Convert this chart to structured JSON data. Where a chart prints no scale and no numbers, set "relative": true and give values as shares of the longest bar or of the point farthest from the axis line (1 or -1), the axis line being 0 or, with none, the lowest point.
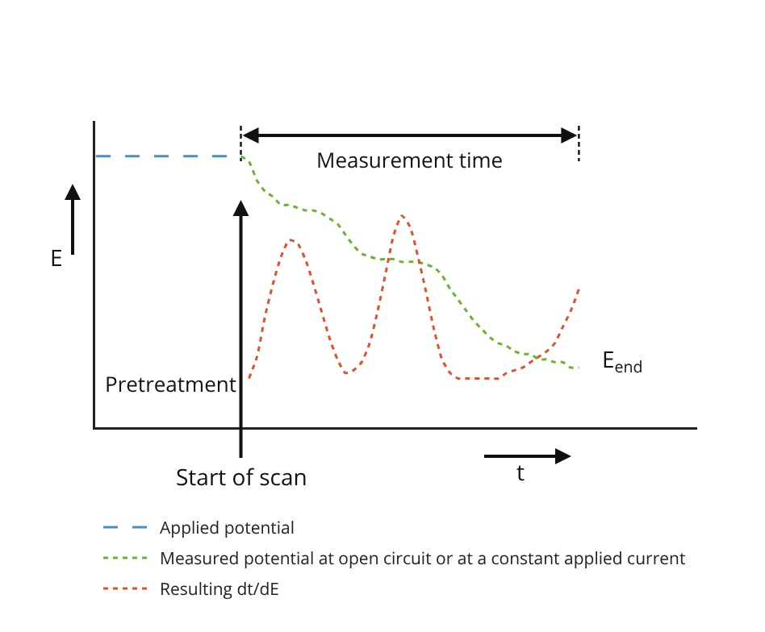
{
  "chart_data": {
    "type": "line",
    "relative": true,
    "xlabel": "t",
    "ylabel": "E",
    "legend": "bottom",
    "marker": "none",
    "annotations": [
      "Measurement time",
      "Pretreatment",
      "Start of scan",
      "E$_{end}$"
    ],
    "categories": [
      null,
      null,
      null,
      null,
      null,
      null,
      null,
      null,
      null,
      null,
      null,
      null,
      null,
      null,
      null,
      null,
      null,
      null,
      null,
      null,
      null,
      null,
      null,
      null,
      null,
      null,
      null,
      null,
      null,
      null,
      null,
      null,
      null,
      null,
      null,
      null,
      null,
      null,
      null,
      null,
      null,
      null,
      null,
      null,
      null,
      null,
      null,
      null,
      null,
      null,
      null,
      null,
      null,
      null,
      null,
      null,
      null,
      null,
      null,
      null,
      null
    ],
    "series": [
      {
        "name": "Applied potential",
        "color": "#4a8fc9",
        "line_style": "dashed",
        "values": [
          1,
          1,
          1,
          1,
          1,
          1,
          1,
          1,
          1,
          1,
          1,
          1,
          1,
          1,
          1,
          1,
          1,
          1,
          1,
          null,
          null,
          null,
          null,
          null,
          null,
          null,
          null,
          null,
          null,
          null,
          null,
          null,
          null,
          null,
          null,
          null,
          null,
          null,
          null,
          null,
          null,
          null,
          null,
          null,
          null,
          null,
          null,
          null,
          null,
          null,
          null,
          null,
          null,
          null,
          null,
          null,
          null,
          null,
          null,
          null,
          null
        ]
      },
      {
        "name": "Measured potential at open circuit or at a constant applied current",
        "color": "#6ab42d",
        "line_style": "dotted",
        "values": [
          null,
          null,
          null,
          null,
          null,
          null,
          null,
          null,
          null,
          null,
          null,
          null,
          null,
          null,
          null,
          null,
          null,
          null,
          1.0,
          0.98,
          0.91,
          0.87,
          0.85,
          0.82,
          0.82,
          0.81,
          0.8,
          0.8,
          0.79,
          0.77,
          0.75,
          0.71,
          0.67,
          0.64,
          0.63,
          0.62,
          0.62,
          0.62,
          0.61,
          0.61,
          0.61,
          0.6,
          0.59,
          0.56,
          0.51,
          0.47,
          0.43,
          0.39,
          0.36,
          0.33,
          0.31,
          0.3,
          0.28,
          0.27,
          0.27,
          0.25,
          0.25,
          0.24,
          0.24,
          0.22,
          0.22
        ]
      },
      {
        "name": "Resulting dt/dE",
        "color": "#e0502a",
        "line_style": "dotted",
        "values": [
          null,
          null,
          null,
          null,
          null,
          null,
          null,
          null,
          null,
          null,
          null,
          null,
          null,
          null,
          null,
          null,
          null,
          null,
          null,
          0.18,
          0.26,
          0.41,
          0.53,
          0.63,
          0.69,
          0.68,
          0.62,
          0.53,
          0.43,
          0.33,
          0.25,
          0.2,
          0.21,
          0.24,
          0.31,
          0.43,
          0.57,
          0.71,
          0.78,
          0.74,
          0.63,
          0.5,
          0.36,
          0.25,
          0.2,
          0.18,
          0.18,
          0.18,
          0.18,
          0.18,
          0.18,
          0.2,
          0.21,
          0.22,
          0.24,
          0.26,
          0.28,
          0.31,
          0.37,
          0.43,
          0.51
        ]
      }
    ]
  }
}
